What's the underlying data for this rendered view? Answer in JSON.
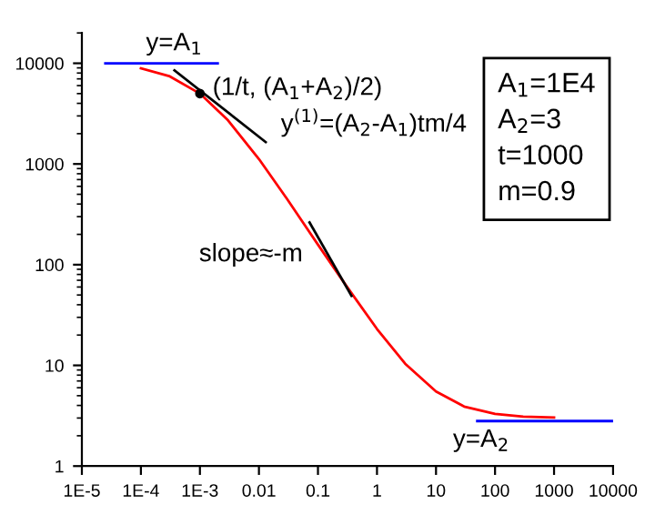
{
  "chart_data": {
    "type": "line",
    "log": "xy",
    "grid": false,
    "legend": false,
    "marker": "none",
    "line_style": "solid",
    "xlim": [
      1e-05,
      10000
    ],
    "ylim": [
      1,
      20000
    ],
    "xticks": [
      {
        "value": 1e-05,
        "label": "1E-5"
      },
      {
        "value": 0.0001,
        "label": "1E-4"
      },
      {
        "value": 0.001,
        "label": "1E-3"
      },
      0.01,
      0.1,
      1,
      10,
      100,
      1000,
      10000
    ],
    "yticks": [
      1,
      10,
      100,
      1000,
      10000
    ],
    "series": [
      {
        "color": "#ff0000",
        "x": [
          0.0001,
          0.0003,
          0.001,
          0.003,
          0.01,
          0.03,
          0.1,
          0.3,
          1,
          3,
          10,
          30,
          100,
          300,
          1000
        ],
        "values": [
          8900,
          7470,
          5000,
          2710,
          1120,
          449,
          158,
          62,
          23,
          10.4,
          5.5,
          3.9,
          3.3,
          3.1,
          3.04
        ]
      },
      {
        "color": "#0000ff",
        "x": [
          2.5e-05,
          0.002
        ],
        "values": [
          10000,
          10000
        ]
      },
      {
        "color": "#0000ff",
        "x": [
          50,
          10000
        ],
        "values": [
          2.8,
          2.8
        ]
      },
      {
        "color": "#000000",
        "x": [
          0.00037,
          0.013
        ],
        "values": [
          8500,
          1650
        ]
      },
      {
        "color": "#000000",
        "x": [
          0.072,
          0.37
        ],
        "values": [
          263,
          49
        ]
      },
      {
        "type": "scatter",
        "marker": "circle",
        "color": "#000000",
        "x": [
          0.001
        ],
        "values": [
          5000
        ]
      }
    ],
    "annotations": [
      {
        "text": "y=A$_{1}$",
        "x": 0.0001,
        "y": 10000
      },
      {
        "text": "(1/t, (A$_{1}$+A$_{2}$)/2)",
        "x": 0.001,
        "y": 5000
      },
      {
        "text": "y$^{(1)}$=(A$_{2}$-A$_{1}$)tm/4",
        "x": 0.013,
        "y": 1650
      },
      {
        "text": "slope≈-m",
        "x": 0.1,
        "y": 158
      },
      {
        "text": "y=A$_{2}$",
        "x": 1000,
        "y": 2.8
      },
      "A$_{1}$=1E4\nA$_{2}$=3\nt=1000\nm=0.9"
    ]
  }
}
